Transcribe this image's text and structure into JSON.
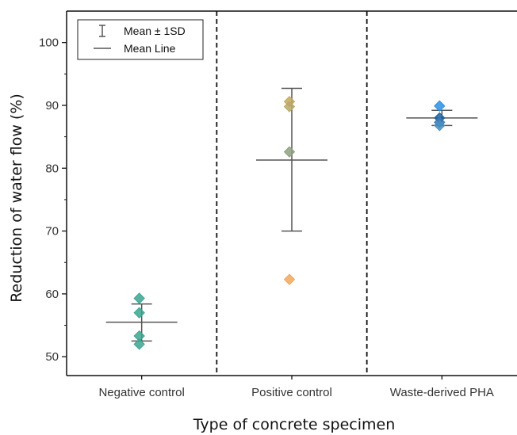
{
  "chart_data": {
    "type": "scatter",
    "xlabel": "Type of concrete specimen",
    "ylabel": "Reduction of water flow (%)",
    "ylim": [
      47,
      105
    ],
    "yticks": [
      50,
      60,
      70,
      80,
      90,
      100
    ],
    "categories": [
      "Negative control",
      "Positive control",
      "Waste-derived PHA"
    ],
    "groups": [
      {
        "category": "Negative control",
        "mean": 55.5,
        "sd_low": 52.5,
        "sd_high": 58.4,
        "points": [
          {
            "value": 59.3,
            "color": "#3aa58f"
          },
          {
            "value": 57.0,
            "color": "#3aa58f"
          },
          {
            "value": 53.3,
            "color": "#3aa58f"
          },
          {
            "value": 52.0,
            "color": "#3aa58f"
          }
        ]
      },
      {
        "category": "Positive control",
        "mean": 81.3,
        "sd_low": 70.0,
        "sd_high": 92.7,
        "points": [
          {
            "value": 90.6,
            "color": "#c4a85c"
          },
          {
            "value": 89.8,
            "color": "#b8a866"
          },
          {
            "value": 82.6,
            "color": "#8fa080"
          },
          {
            "value": 62.3,
            "color": "#f0a860"
          }
        ]
      },
      {
        "category": "Waste-derived PHA",
        "mean": 88.0,
        "sd_low": 86.8,
        "sd_high": 89.2,
        "points": [
          {
            "value": 89.9,
            "color": "#2e8fe0"
          },
          {
            "value": 88.0,
            "color": "#1d5f9a"
          },
          {
            "value": 87.3,
            "color": "#3a78b5"
          },
          {
            "value": 86.8,
            "color": "#4a8fbf"
          }
        ]
      }
    ],
    "legend": {
      "position": "top-left",
      "entries": [
        {
          "symbol": "error-bar",
          "label": "Mean ± 1SD"
        },
        {
          "symbol": "line",
          "label": "Mean Line"
        }
      ]
    },
    "separators": "dashed",
    "grid": false
  }
}
